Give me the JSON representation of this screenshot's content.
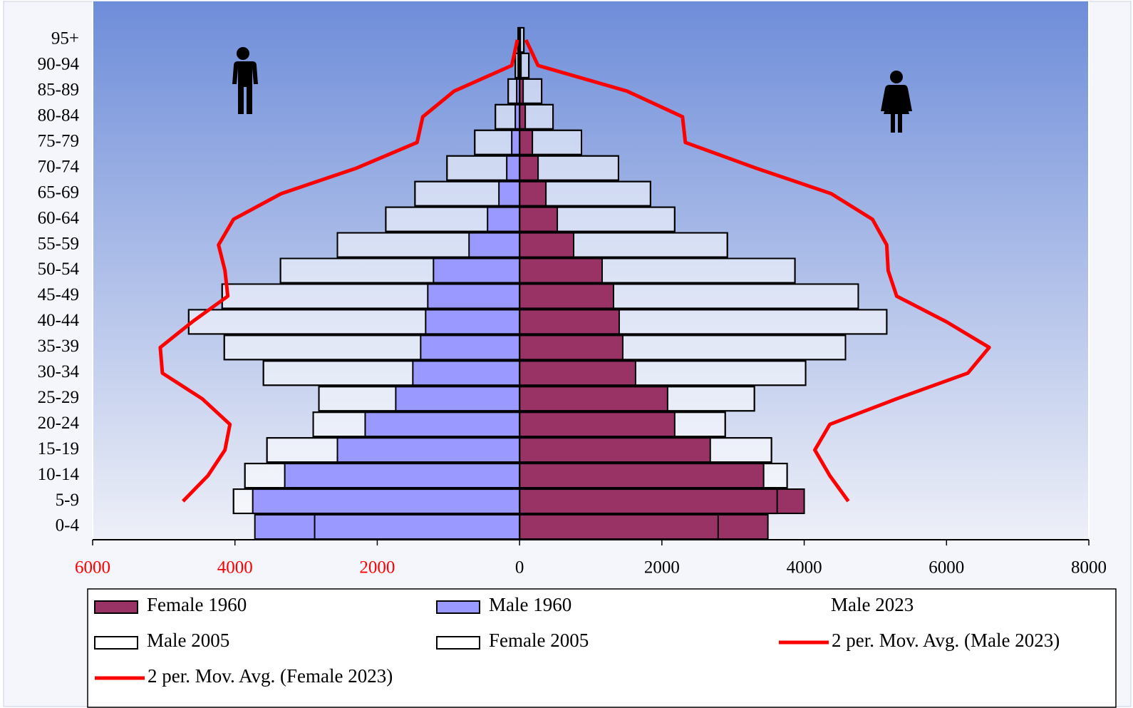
{
  "chart_data": {
    "type": "bar",
    "orientation": "horizontal",
    "categories": [
      "0-4",
      "5-9",
      "10-14",
      "15-19",
      "20-24",
      "25-29",
      "30-34",
      "35-39",
      "40-44",
      "45-49",
      "50-54",
      "55-59",
      "60-64",
      "65-69",
      "70-74",
      "75-79",
      "80-84",
      "85-89",
      "90-94",
      "95+"
    ],
    "xlim": [
      -6000,
      8000
    ],
    "xticks": [
      {
        "value": -6000,
        "label": "6000"
      },
      {
        "value": -4000,
        "label": "4000"
      },
      {
        "value": -2000,
        "label": "2000"
      },
      0,
      2000,
      4000,
      6000,
      8000
    ],
    "negative_tick_color": "#ff0000",
    "series": [
      {
        "name": "Female 1960",
        "type": "bar",
        "color": "#993366",
        "values": [
          3490,
          4000,
          3430,
          2680,
          2180,
          2080,
          1630,
          1450,
          1400,
          1320,
          1160,
          760,
          530,
          370,
          260,
          180,
          80,
          50,
          20,
          10
        ]
      },
      {
        "name": "Male 1960",
        "type": "bar",
        "color": "#9999ff",
        "values": [
          -3720,
          -3750,
          -3300,
          -2560,
          -2170,
          -1740,
          -1500,
          -1390,
          -1320,
          -1290,
          -1210,
          -710,
          -450,
          -290,
          -180,
          -110,
          -60,
          -40,
          -20,
          -10
        ]
      },
      {
        "name": "Male 2023",
        "type": "line",
        "values": [
          null,
          null,
          null,
          null,
          null,
          null,
          null,
          null,
          null,
          null,
          null,
          null,
          null,
          null,
          null,
          null,
          null,
          null,
          null,
          null
        ]
      },
      {
        "name": "Male 2005",
        "type": "bar",
        "color": "#ffffff",
        "values": [
          -2880,
          -4020,
          -3860,
          -3550,
          -2900,
          -2820,
          -3600,
          -4150,
          -4650,
          -4180,
          -3360,
          -2560,
          -1880,
          -1470,
          -1020,
          -630,
          -340,
          -160,
          -60,
          -20
        ]
      },
      {
        "name": "Female 2005",
        "type": "bar",
        "color": "#ffffff",
        "values": [
          2790,
          3620,
          3760,
          3540,
          2890,
          3300,
          4020,
          4580,
          5160,
          4760,
          3870,
          2920,
          2180,
          1840,
          1390,
          870,
          470,
          310,
          130,
          60
        ]
      },
      {
        "name": "2 per. Mov. Avg. (Male 2023)",
        "type": "line",
        "color": "#ff0000",
        "values": [
          null,
          -4730,
          -4380,
          -4140,
          -4070,
          -4460,
          -5020,
          -5050,
          -4600,
          -4100,
          -4140,
          -4230,
          -4020,
          -3350,
          -2290,
          -1440,
          -1360,
          -920,
          -110,
          -30
        ]
      },
      {
        "name": "2 per. Mov. Avg. (Female 2023)",
        "type": "line",
        "color": "#ff0000",
        "values": [
          null,
          4620,
          4360,
          4150,
          4360,
          5300,
          6300,
          6600,
          6000,
          5300,
          5180,
          5160,
          4960,
          4380,
          3320,
          2330,
          2290,
          1510,
          260,
          90
        ]
      }
    ]
  }
}
